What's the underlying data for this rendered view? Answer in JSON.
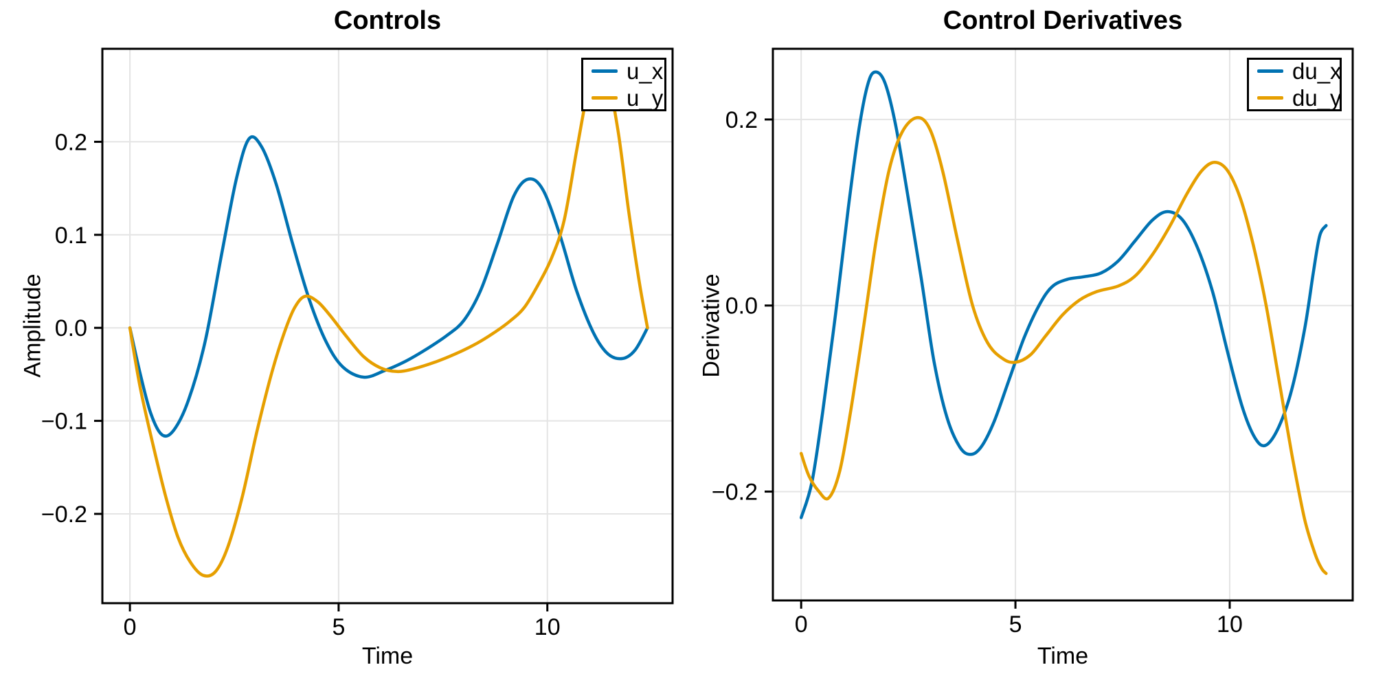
{
  "figure": {
    "background": "#FFFFFF"
  },
  "colors": {
    "series_blue": "#0072B2",
    "series_orange": "#E69F00",
    "grid": "#E4E4E4",
    "frame": "#000000",
    "text": "#000000"
  },
  "chart_data": [
    {
      "type": "line",
      "title": "Controls",
      "xlabel": "Time",
      "ylabel": "Amplitude",
      "xlim": [
        -0.66,
        13.0
      ],
      "ylim": [
        -0.296,
        0.3
      ],
      "xticks": [
        0,
        5,
        10
      ],
      "xtick_labels": [
        "0",
        "5",
        "10"
      ],
      "yticks": [
        0.2,
        0.1,
        0.0,
        -0.1,
        -0.2
      ],
      "ytick_labels": [
        "0.2",
        "0.1",
        "0.0",
        "−0.1",
        "−0.2"
      ],
      "grid": true,
      "legend_position": "top-right",
      "series": [
        {
          "name": "u_x",
          "color": "#0072B2",
          "points": [
            [
              0,
              0
            ],
            [
              0.25,
              -0.05
            ],
            [
              0.5,
              -0.092
            ],
            [
              0.77,
              -0.115
            ],
            [
              1.05,
              -0.11
            ],
            [
              1.4,
              -0.078
            ],
            [
              1.8,
              -0.015
            ],
            [
              2.2,
              0.08
            ],
            [
              2.55,
              0.16
            ],
            [
              2.85,
              0.203
            ],
            [
              3.15,
              0.195
            ],
            [
              3.5,
              0.155
            ],
            [
              3.9,
              0.09
            ],
            [
              4.3,
              0.03
            ],
            [
              4.7,
              -0.015
            ],
            [
              5.1,
              -0.042
            ],
            [
              5.6,
              -0.053
            ],
            [
              6.1,
              -0.046
            ],
            [
              6.6,
              -0.036
            ],
            [
              7.1,
              -0.023
            ],
            [
              7.6,
              -0.008
            ],
            [
              8.0,
              0.008
            ],
            [
              8.4,
              0.04
            ],
            [
              8.8,
              0.09
            ],
            [
              9.2,
              0.142
            ],
            [
              9.55,
              0.16
            ],
            [
              9.9,
              0.148
            ],
            [
              10.3,
              0.1
            ],
            [
              10.7,
              0.04
            ],
            [
              11.1,
              -0.005
            ],
            [
              11.45,
              -0.028
            ],
            [
              11.8,
              -0.033
            ],
            [
              12.1,
              -0.024
            ],
            [
              12.4,
              0
            ]
          ]
        },
        {
          "name": "u_y",
          "color": "#E69F00",
          "points": [
            [
              0,
              0
            ],
            [
              0.25,
              -0.065
            ],
            [
              0.55,
              -0.125
            ],
            [
              0.85,
              -0.18
            ],
            [
              1.15,
              -0.225
            ],
            [
              1.45,
              -0.252
            ],
            [
              1.75,
              -0.266
            ],
            [
              2.05,
              -0.262
            ],
            [
              2.35,
              -0.235
            ],
            [
              2.7,
              -0.18
            ],
            [
              3.05,
              -0.11
            ],
            [
              3.4,
              -0.048
            ],
            [
              3.7,
              -0.005
            ],
            [
              3.95,
              0.022
            ],
            [
              4.2,
              0.034
            ],
            [
              4.5,
              0.028
            ],
            [
              4.8,
              0.013
            ],
            [
              5.2,
              -0.01
            ],
            [
              5.6,
              -0.031
            ],
            [
              6.0,
              -0.043
            ],
            [
              6.4,
              -0.047
            ],
            [
              6.8,
              -0.044
            ],
            [
              7.3,
              -0.037
            ],
            [
              7.8,
              -0.028
            ],
            [
              8.3,
              -0.017
            ],
            [
              8.7,
              -0.006
            ],
            [
              9.1,
              0.007
            ],
            [
              9.45,
              0.022
            ],
            [
              9.8,
              0.048
            ],
            [
              10.1,
              0.075
            ],
            [
              10.4,
              0.115
            ],
            [
              10.7,
              0.19
            ],
            [
              11.0,
              0.262
            ],
            [
              11.2,
              0.285
            ],
            [
              11.45,
              0.268
            ],
            [
              11.7,
              0.21
            ],
            [
              11.95,
              0.125
            ],
            [
              12.2,
              0.05
            ],
            [
              12.4,
              0
            ]
          ]
        }
      ]
    },
    {
      "type": "line",
      "title": "Control Derivatives",
      "xlabel": "Time",
      "ylabel": "Derivative",
      "xlim": [
        -0.66,
        12.87
      ],
      "ylim": [
        -0.317,
        0.276
      ],
      "xticks": [
        0,
        5,
        10
      ],
      "xtick_labels": [
        "0",
        "5",
        "10"
      ],
      "yticks": [
        0.2,
        0.0,
        -0.2
      ],
      "ytick_labels": [
        "0.2",
        "0.0",
        "−0.2"
      ],
      "grid": true,
      "legend_position": "top-right",
      "series": [
        {
          "name": "du_x",
          "color": "#0072B2",
          "points": [
            [
              0,
              -0.228
            ],
            [
              0.25,
              -0.19
            ],
            [
              0.5,
              -0.115
            ],
            [
              0.8,
              -0.01
            ],
            [
              1.1,
              0.105
            ],
            [
              1.35,
              0.19
            ],
            [
              1.55,
              0.237
            ],
            [
              1.72,
              0.251
            ],
            [
              1.95,
              0.24
            ],
            [
              2.2,
              0.195
            ],
            [
              2.5,
              0.115
            ],
            [
              2.8,
              0.03
            ],
            [
              3.1,
              -0.06
            ],
            [
              3.4,
              -0.12
            ],
            [
              3.7,
              -0.152
            ],
            [
              3.95,
              -0.16
            ],
            [
              4.2,
              -0.152
            ],
            [
              4.5,
              -0.125
            ],
            [
              4.85,
              -0.08
            ],
            [
              5.2,
              -0.035
            ],
            [
              5.55,
              0
            ],
            [
              5.85,
              0.02
            ],
            [
              6.2,
              0.028
            ],
            [
              6.6,
              0.031
            ],
            [
              7.0,
              0.035
            ],
            [
              7.4,
              0.048
            ],
            [
              7.8,
              0.07
            ],
            [
              8.2,
              0.092
            ],
            [
              8.55,
              0.101
            ],
            [
              8.9,
              0.092
            ],
            [
              9.25,
              0.062
            ],
            [
              9.6,
              0.015
            ],
            [
              9.95,
              -0.05
            ],
            [
              10.3,
              -0.11
            ],
            [
              10.6,
              -0.143
            ],
            [
              10.85,
              -0.15
            ],
            [
              11.15,
              -0.13
            ],
            [
              11.45,
              -0.09
            ],
            [
              11.75,
              -0.025
            ],
            [
              11.95,
              0.035
            ],
            [
              12.1,
              0.075
            ],
            [
              12.25,
              0.086
            ]
          ]
        },
        {
          "name": "du_y",
          "color": "#E69F00",
          "points": [
            [
              0,
              -0.159
            ],
            [
              0.18,
              -0.183
            ],
            [
              0.4,
              -0.199
            ],
            [
              0.64,
              -0.207
            ],
            [
              0.9,
              -0.178
            ],
            [
              1.15,
              -0.115
            ],
            [
              1.45,
              -0.025
            ],
            [
              1.75,
              0.07
            ],
            [
              2.05,
              0.145
            ],
            [
              2.35,
              0.186
            ],
            [
              2.7,
              0.202
            ],
            [
              3.0,
              0.19
            ],
            [
              3.3,
              0.145
            ],
            [
              3.65,
              0.07
            ],
            [
              4.0,
              0
            ],
            [
              4.35,
              -0.04
            ],
            [
              4.7,
              -0.057
            ],
            [
              5.0,
              -0.061
            ],
            [
              5.35,
              -0.053
            ],
            [
              5.7,
              -0.033
            ],
            [
              6.1,
              -0.01
            ],
            [
              6.5,
              0.006
            ],
            [
              6.9,
              0.015
            ],
            [
              7.4,
              0.021
            ],
            [
              7.8,
              0.032
            ],
            [
              8.2,
              0.055
            ],
            [
              8.6,
              0.085
            ],
            [
              9.0,
              0.12
            ],
            [
              9.35,
              0.145
            ],
            [
              9.65,
              0.154
            ],
            [
              9.95,
              0.145
            ],
            [
              10.25,
              0.115
            ],
            [
              10.55,
              0.065
            ],
            [
              10.85,
              0
            ],
            [
              11.15,
              -0.08
            ],
            [
              11.45,
              -0.16
            ],
            [
              11.75,
              -0.23
            ],
            [
              12.0,
              -0.268
            ],
            [
              12.15,
              -0.283
            ],
            [
              12.25,
              -0.288
            ]
          ]
        }
      ]
    }
  ]
}
